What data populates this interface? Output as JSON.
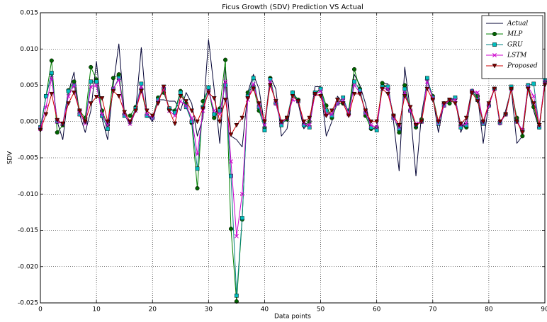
{
  "chart_data": {
    "type": "line",
    "title": "Ficus Growth (SDV) Prediction VS Actual",
    "xlabel": "Data points",
    "ylabel": "SDV",
    "x": [
      0,
      1,
      2,
      3,
      4,
      5,
      6,
      7,
      8,
      9,
      10,
      11,
      12,
      13,
      14,
      15,
      16,
      17,
      18,
      19,
      20,
      21,
      22,
      23,
      24,
      25,
      26,
      27,
      28,
      29,
      30,
      31,
      32,
      33,
      34,
      35,
      36,
      37,
      38,
      39,
      40,
      41,
      42,
      43,
      44,
      45,
      46,
      47,
      48,
      49,
      50,
      51,
      52,
      53,
      54,
      55,
      56,
      57,
      58,
      59,
      60,
      61,
      62,
      63,
      64,
      65,
      66,
      67,
      68,
      69,
      70,
      71,
      72,
      73,
      74,
      75,
      76,
      77,
      78,
      79,
      80,
      81,
      82,
      83,
      84,
      85,
      86,
      87,
      88,
      89,
      90
    ],
    "xlim": [
      0,
      90
    ],
    "xticks": [
      0,
      10,
      20,
      30,
      40,
      50,
      60,
      70,
      80,
      90
    ],
    "ylim": [
      -0.025,
      0.015
    ],
    "yticks": [
      -0.025,
      {
        "value": -0.02,
        "label": "-0.020"
      },
      -0.015,
      {
        "value": -0.01,
        "label": "-0.010"
      },
      -0.005,
      {
        "value": 0,
        "label": "0.000"
      },
      0.005,
      {
        "value": 0.01,
        "label": "0.010"
      },
      0.015
    ],
    "grid": true,
    "legend": "upper right",
    "series": [
      {
        "name": "Actual",
        "color": "#000033",
        "marker": "none",
        "values": [
          -0.001,
          0.0035,
          0.0065,
          0.0,
          -0.0025,
          0.004,
          0.0068,
          0.001,
          -0.0015,
          0.0015,
          0.0083,
          0.0005,
          -0.0025,
          0.005,
          0.0107,
          0.001,
          -0.0005,
          0.0015,
          0.0102,
          0.001,
          0.0,
          0.003,
          0.003,
          0.0028,
          0.0028,
          0.0015,
          0.004,
          0.0025,
          -0.002,
          0.0005,
          0.0113,
          0.0045,
          -0.003,
          0.0075,
          -0.002,
          -0.0025,
          -0.0035,
          0.004,
          0.0065,
          0.0045,
          -0.0005,
          0.0062,
          0.0045,
          -0.002,
          -0.001,
          0.004,
          0.0025,
          -0.001,
          0.0,
          0.0048,
          0.0048,
          -0.002,
          0.0,
          0.0035,
          0.0025,
          0.0015,
          0.0065,
          0.005,
          0.0025,
          -0.001,
          -0.001,
          0.0053,
          0.0052,
          0.0,
          -0.0068,
          0.0075,
          0.0015,
          -0.0075,
          0.001,
          0.0055,
          0.0035,
          -0.0015,
          0.0025,
          0.003,
          0.0032,
          -0.0015,
          0.0005,
          0.0045,
          0.0035,
          -0.003,
          0.0025,
          0.0045,
          -0.0005,
          0.0015,
          0.0045,
          -0.003,
          -0.002,
          0.0045,
          0.0015,
          -0.001,
          0.0055
        ]
      },
      {
        "name": "MLP",
        "color": "#008000",
        "marker_color": "#006400",
        "marker": "circle",
        "values": [
          -0.001,
          0.0035,
          0.0084,
          -0.0015,
          -0.0005,
          0.0043,
          0.0055,
          0.0015,
          0.0005,
          0.0075,
          0.0058,
          0.0015,
          -0.0005,
          0.006,
          0.0065,
          0.001,
          0.0008,
          0.002,
          0.0045,
          0.0008,
          0.0005,
          0.0033,
          0.004,
          0.0018,
          0.0015,
          0.0042,
          0.0025,
          -0.0002,
          -0.0092,
          0.0028,
          0.0045,
          0.0005,
          0.0018,
          0.0085,
          -0.0148,
          -0.0248,
          -0.0135,
          0.004,
          0.0048,
          0.0015,
          -0.0008,
          0.006,
          0.0025,
          -0.0003,
          0.0003,
          0.004,
          0.003,
          -0.0005,
          0.0,
          0.0038,
          0.0045,
          0.0022,
          0.0005,
          0.0025,
          0.0025,
          0.0015,
          0.0072,
          0.0045,
          0.0008,
          -0.001,
          -0.0008,
          0.0053,
          0.0045,
          0.0008,
          -0.0015,
          0.005,
          0.0015,
          -0.0008,
          0.0003,
          0.0058,
          0.0035,
          0.0,
          0.0025,
          0.0025,
          0.0032,
          -0.0005,
          -0.0008,
          0.004,
          0.0035,
          0.0,
          0.0022,
          0.0045,
          -0.0002,
          0.001,
          0.0045,
          0.0005,
          -0.002,
          0.005,
          0.002,
          -0.0008,
          0.0055
        ]
      },
      {
        "name": "GRU",
        "color": "#008080",
        "marker_color": "#00bfbf",
        "marker": "square",
        "values": [
          -0.0008,
          0.0035,
          0.0067,
          0.0,
          -0.0003,
          0.0042,
          0.005,
          0.001,
          0.0,
          0.0055,
          0.0055,
          0.0008,
          -0.001,
          0.0045,
          0.006,
          0.0008,
          0.0,
          0.0018,
          0.0052,
          0.0008,
          0.0005,
          0.003,
          0.0045,
          0.0018,
          0.0012,
          0.004,
          0.002,
          0.0,
          -0.0065,
          0.002,
          0.0047,
          0.001,
          0.0015,
          0.005,
          -0.0075,
          -0.024,
          -0.0133,
          0.0035,
          0.006,
          0.002,
          -0.0012,
          0.0058,
          0.0025,
          -0.0005,
          0.0005,
          0.004,
          0.0028,
          -0.0005,
          -0.0008,
          0.004,
          0.0045,
          0.0015,
          0.0008,
          0.0025,
          0.0033,
          0.0012,
          0.0055,
          0.0043,
          0.0012,
          -0.0008,
          -0.0012,
          0.0048,
          0.0048,
          0.0005,
          -0.001,
          0.0045,
          0.0015,
          -0.0005,
          0.0,
          0.006,
          0.0033,
          -0.0003,
          0.0022,
          0.003,
          0.0033,
          -0.0008,
          -0.0005,
          0.0042,
          0.003,
          -0.0003,
          0.0022,
          0.0045,
          -0.0002,
          0.001,
          0.0048,
          0.0,
          -0.0012,
          0.005,
          0.0052,
          -0.0008,
          0.0057
        ]
      },
      {
        "name": "LSTM",
        "color": "#cc00cc",
        "marker_color": "#cc00cc",
        "marker": "x",
        "values": [
          -0.001,
          0.002,
          0.006,
          0.0,
          -0.0003,
          0.0035,
          0.005,
          0.0012,
          -0.0003,
          0.0048,
          0.005,
          0.001,
          -0.0005,
          0.0045,
          0.0058,
          0.001,
          -0.0003,
          0.0015,
          0.0048,
          0.001,
          0.0005,
          0.0028,
          0.0045,
          0.0015,
          0.0008,
          0.0028,
          0.0022,
          0.0005,
          -0.0045,
          0.0015,
          0.0042,
          0.0015,
          0.001,
          0.0055,
          -0.0055,
          -0.0158,
          -0.01,
          0.003,
          0.0052,
          0.0022,
          -0.0005,
          0.0055,
          0.0025,
          -0.0002,
          0.0005,
          0.003,
          0.0028,
          -0.0003,
          -0.0005,
          0.0038,
          0.0042,
          0.001,
          0.001,
          0.0025,
          0.003,
          0.001,
          0.005,
          0.004,
          0.0012,
          -0.0005,
          -0.0008,
          0.0045,
          0.0045,
          0.0005,
          -0.0008,
          0.004,
          0.0015,
          -0.0003,
          0.0,
          0.0055,
          0.0032,
          -0.0002,
          0.0022,
          0.003,
          0.003,
          -0.0005,
          -0.0003,
          0.0042,
          0.004,
          -0.0002,
          0.0022,
          0.0045,
          -0.0002,
          0.001,
          0.0045,
          0.0,
          -0.0012,
          0.0048,
          0.0035,
          -0.0005,
          0.0055
        ]
      },
      {
        "name": "Proposed",
        "color": "#cc0000",
        "marker_color": "#800000",
        "marker": "triangle_down",
        "values": [
          -0.0012,
          0.001,
          0.0038,
          0.0002,
          -0.0003,
          0.0025,
          0.004,
          0.0015,
          0.0,
          0.0025,
          0.0034,
          0.0032,
          0.0,
          0.0042,
          0.0035,
          0.0013,
          0.0,
          0.0015,
          0.0042,
          0.0015,
          0.0008,
          0.0025,
          0.0048,
          0.0015,
          -0.0003,
          0.0035,
          0.0028,
          0.0015,
          0.0,
          0.0018,
          0.004,
          0.0032,
          0.0,
          0.003,
          -0.0018,
          -0.0005,
          0.0005,
          0.0032,
          0.0045,
          0.0025,
          0.0,
          0.005,
          0.0028,
          0.0,
          0.0005,
          0.0035,
          0.0028,
          0.0,
          0.0005,
          0.0038,
          0.0035,
          0.0008,
          0.0015,
          0.003,
          0.0025,
          0.0008,
          0.0038,
          0.0038,
          0.0015,
          0.0,
          0.0,
          0.0045,
          0.0038,
          0.0008,
          -0.0005,
          0.0035,
          0.002,
          -0.0005,
          0.0,
          0.0045,
          0.003,
          0.0,
          0.0025,
          0.003,
          0.0025,
          -0.0003,
          0.0005,
          0.004,
          0.0028,
          0.0,
          0.0025,
          0.0045,
          0.0,
          0.001,
          0.0045,
          0.0,
          -0.0015,
          0.0045,
          0.0025,
          -0.0005,
          0.005
        ]
      }
    ]
  }
}
